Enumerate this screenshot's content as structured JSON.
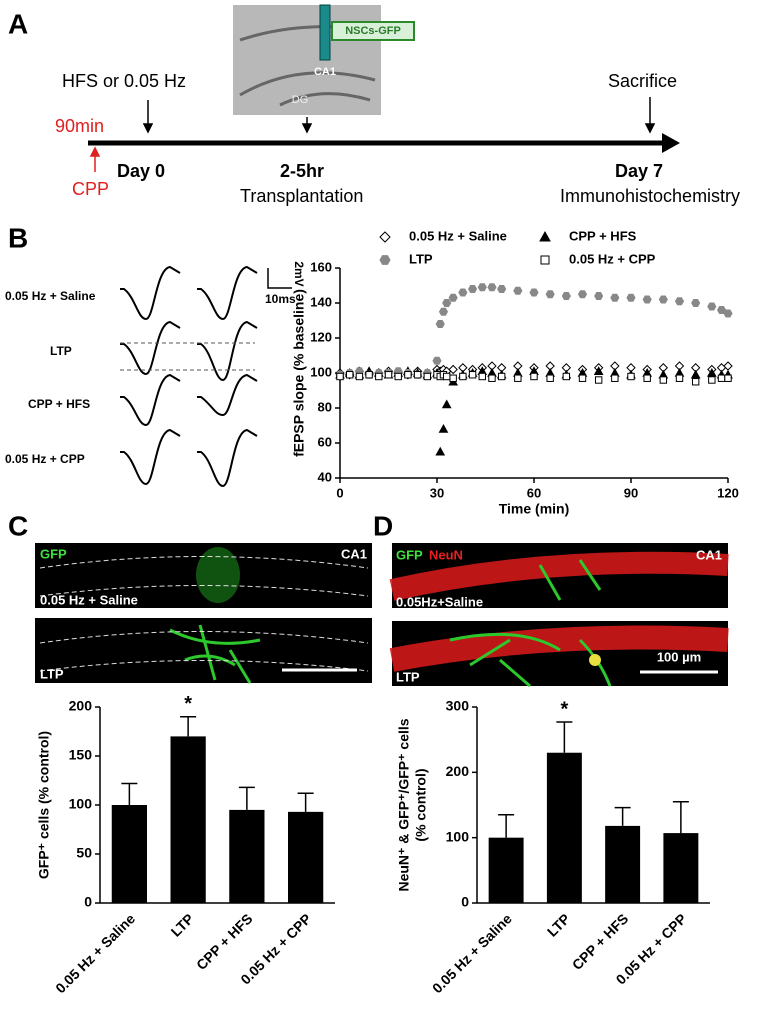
{
  "panel_labels": [
    "A",
    "B",
    "C",
    "D"
  ],
  "timeline": {
    "protocol": "HFS or 0.05 Hz",
    "pre_time": "90min",
    "drug": "CPP",
    "day0": "Day 0",
    "transplant_time": "2-5hr",
    "transplant": "Transplantation",
    "sacrifice": "Sacrifice",
    "day7": "Day 7",
    "histology": "Immunohistochemistry",
    "image_tag": "NSCs-GFP",
    "image_region": "CA1",
    "image_dg": "DG"
  },
  "traces": {
    "rows": [
      "0.05 Hz + Saline",
      "LTP",
      "CPP + HFS",
      "0.05 Hz + CPP"
    ],
    "scale_v": "2mV",
    "scale_t": "10ms"
  },
  "images": {
    "C": {
      "stain": "GFP",
      "region": "CA1",
      "rows": [
        "0.05 Hz + Saline",
        "LTP"
      ]
    },
    "D": {
      "stain1": "GFP",
      "stain2": "NeuN",
      "region": "CA1",
      "rows": [
        "0.05Hz+Saline",
        "LTP"
      ],
      "scale": "100 µm"
    }
  },
  "chart_data": [
    {
      "type": "scatter",
      "ylabel": "fEPSP slope (% baseline)",
      "xlabel": "Time (min)",
      "x": [
        0,
        3,
        6,
        9,
        12,
        15,
        18,
        21,
        24,
        27,
        30,
        31,
        32,
        33,
        35,
        38,
        41,
        44,
        47,
        50,
        55,
        60,
        65,
        70,
        75,
        80,
        85,
        90,
        95,
        100,
        105,
        110,
        115,
        118,
        120
      ],
      "xlim": [
        0,
        120
      ],
      "xticks": [
        0,
        30,
        60,
        90,
        120
      ],
      "ylim": [
        40,
        160
      ],
      "yticks": [
        40,
        60,
        80,
        100,
        120,
        140,
        160
      ],
      "series": [
        {
          "name": "0.05 Hz + Saline",
          "marker": "diamond",
          "filled": false,
          "color": "#000000",
          "values": [
            100,
            99,
            101,
            100,
            100,
            101,
            100,
            99,
            101,
            100,
            102,
            101,
            102,
            101,
            102,
            103,
            102,
            103,
            104,
            103,
            104,
            103,
            104,
            103,
            102,
            103,
            104,
            103,
            102,
            103,
            104,
            103,
            102,
            103,
            104
          ]
        },
        {
          "name": "CPP + HFS",
          "marker": "triangle",
          "filled": true,
          "color": "#000000",
          "values": [
            99,
            100,
            99,
            101,
            100,
            99,
            100,
            101,
            100,
            99,
            100,
            55,
            68,
            82,
            95,
            99,
            100,
            101,
            100,
            99,
            100,
            101,
            100,
            99,
            100,
            101,
            100,
            99,
            100,
            99,
            100,
            99,
            100,
            99,
            99
          ]
        },
        {
          "name": "LTP",
          "marker": "hexagon",
          "filled": true,
          "color": "#888888",
          "values": [
            99,
            100,
            101,
            99,
            100,
            100,
            101,
            100,
            99,
            100,
            107,
            128,
            135,
            140,
            143,
            146,
            148,
            149,
            149,
            148,
            147,
            146,
            145,
            144,
            145,
            144,
            143,
            143,
            142,
            142,
            141,
            140,
            138,
            136,
            134
          ]
        },
        {
          "name": "0.05 Hz + CPP",
          "marker": "square",
          "filled": false,
          "color": "#000000",
          "values": [
            98,
            99,
            98,
            99,
            98,
            99,
            98,
            99,
            99,
            98,
            99,
            98,
            99,
            98,
            97,
            98,
            99,
            98,
            97,
            98,
            97,
            98,
            97,
            98,
            97,
            96,
            97,
            98,
            97,
            96,
            97,
            95,
            96,
            97,
            97
          ]
        }
      ]
    },
    {
      "type": "bar",
      "ylabel": [
        "GFP⁺ cells (% control)"
      ],
      "annotation": "*",
      "categories": [
        "0.05 Hz + Saline",
        "LTP",
        "CPP + HFS",
        "0.05 Hz + CPP"
      ],
      "values": [
        100,
        170,
        95,
        93
      ],
      "errors": [
        22,
        20,
        23,
        19
      ],
      "color": "#000000",
      "ylim": [
        0,
        200
      ],
      "yticks": [
        0,
        50,
        100,
        150,
        200
      ]
    },
    {
      "type": "bar",
      "ylabel": [
        "NeuN⁺ & GFP⁺/GFP⁺ cells",
        "(% control)"
      ],
      "annotation": "*",
      "categories": [
        "0.05 Hz + Saline",
        "LTP",
        "CPP + HFS",
        "0.05 Hz + CPP"
      ],
      "values": [
        100,
        230,
        118,
        107
      ],
      "errors": [
        35,
        47,
        28,
        48
      ],
      "color": "#000000",
      "ylim": [
        0,
        300
      ],
      "yticks": [
        0,
        100,
        200,
        300
      ]
    }
  ]
}
